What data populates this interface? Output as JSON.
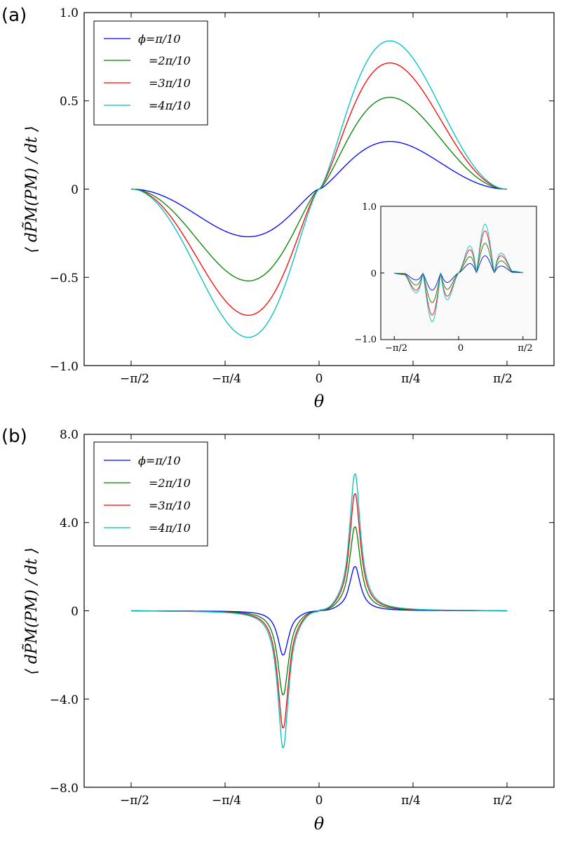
{
  "chart_data": [
    {
      "type": "line",
      "panel_label": "(a)",
      "xlabel": "θ",
      "ylabel": "⟨ dP̃M(PM) / dt ⟩",
      "xlim": [
        -1.9635,
        1.9635
      ],
      "ylim": [
        -1.0,
        1.0
      ],
      "x_ticks": [
        -1.5708,
        -0.7854,
        0,
        0.7854,
        1.5708
      ],
      "x_tick_labels": [
        "−π/2",
        "−π/4",
        "0",
        "π/4",
        "π/2"
      ],
      "y_ticks": [
        1.0,
        0.5,
        0,
        -0.5,
        -1.0
      ],
      "y_tick_labels": [
        "1.0",
        "0.5",
        "0",
        "−0.5",
        "−1.0"
      ],
      "grid": false,
      "legend_position": "upper-left",
      "curve_shape": "antisymmetric smooth hump, extremum at θ = ±0.59, zero at θ = 0 and θ = ±π/2",
      "x": [
        -1.5708,
        -1.2,
        -0.9,
        -0.59,
        -0.3,
        0,
        0.3,
        0.59,
        0.9,
        1.2,
        1.5708
      ],
      "series": [
        {
          "name": "ϕ=π/10",
          "color": "#0000ff",
          "peak": 0.27,
          "values": [
            0,
            -0.05,
            -0.17,
            -0.27,
            -0.17,
            0,
            0.17,
            0.27,
            0.17,
            0.05,
            0
          ]
        },
        {
          "name": "=2π/10",
          "color": "#008000",
          "peak": 0.52,
          "values": [
            0,
            -0.09,
            -0.33,
            -0.52,
            -0.33,
            0,
            0.33,
            0.52,
            0.33,
            0.09,
            0
          ]
        },
        {
          "name": "=3π/10",
          "color": "#ff0000",
          "peak": 0.715,
          "values": [
            0,
            -0.12,
            -0.45,
            -0.715,
            -0.45,
            0,
            0.45,
            0.715,
            0.45,
            0.12,
            0
          ]
        },
        {
          "name": "=4π/10",
          "color": "#00bfbf",
          "peak": 0.84,
          "values": [
            0,
            -0.14,
            -0.53,
            -0.84,
            -0.53,
            0,
            0.53,
            0.84,
            0.53,
            0.14,
            0
          ]
        }
      ],
      "inset": {
        "type": "line",
        "xlim": [
          -1.9,
          1.9
        ],
        "ylim": [
          -1.0,
          1.0
        ],
        "x_ticks": [
          -1.5708,
          0,
          1.5708
        ],
        "x_tick_labels": [
          "−π/2",
          "0",
          "π/2"
        ],
        "y_ticks": [
          1.0,
          0,
          -1.0
        ],
        "y_tick_labels": [
          "1.0",
          "0",
          "−1.0"
        ],
        "curve_shape": "oscillatory antisymmetric profile with two main lobes per sign",
        "series_peaks": [
          0.26,
          0.45,
          0.64,
          0.74
        ]
      }
    },
    {
      "type": "line",
      "panel_label": "(b)",
      "xlabel": "θ",
      "ylabel": "⟨ dP̃M(PM) / dt ⟩",
      "xlim": [
        -1.9635,
        1.9635
      ],
      "ylim": [
        -8.0,
        8.0
      ],
      "x_ticks": [
        -1.5708,
        -0.7854,
        0,
        0.7854,
        1.5708
      ],
      "x_tick_labels": [
        "−π/2",
        "−π/4",
        "0",
        "π/4",
        "π/2"
      ],
      "y_ticks": [
        8.0,
        4.0,
        0,
        -4.0,
        -8.0
      ],
      "y_tick_labels": [
        "8.0",
        "4.0",
        "0",
        "−4.0",
        "−8.0"
      ],
      "grid": false,
      "legend_position": "upper-left",
      "curve_shape": "antisymmetric sharp resonance peaks at θ = ±0.30, small shoulder near θ = ±0.12",
      "x": [
        -1.5708,
        -0.8,
        -0.5,
        -0.4,
        -0.3,
        -0.2,
        -0.1,
        0,
        0.1,
        0.2,
        0.3,
        0.4,
        0.5,
        0.8,
        1.5708
      ],
      "series": [
        {
          "name": "ϕ=π/10",
          "color": "#0000ff",
          "peak": 2.0,
          "values": [
            0,
            -0.03,
            -0.2,
            -0.5,
            -2.0,
            -0.7,
            -0.35,
            0,
            0.35,
            0.7,
            2.0,
            0.5,
            0.2,
            0.03,
            0
          ]
        },
        {
          "name": "=2π/10",
          "color": "#008000",
          "peak": 3.8,
          "values": [
            0,
            -0.04,
            -0.3,
            -0.8,
            -3.8,
            -1.3,
            -0.5,
            0,
            0.5,
            1.3,
            3.8,
            0.8,
            0.3,
            0.04,
            0
          ]
        },
        {
          "name": "=3π/10",
          "color": "#ff0000",
          "peak": 5.3,
          "values": [
            0,
            -0.05,
            -0.35,
            -1.0,
            -5.3,
            -1.6,
            -0.6,
            0,
            0.6,
            1.6,
            5.3,
            1.0,
            0.35,
            0.05,
            0
          ]
        },
        {
          "name": "=4π/10",
          "color": "#00bfbf",
          "peak": 6.2,
          "values": [
            0,
            -0.06,
            -0.4,
            -1.15,
            -6.2,
            -1.8,
            -0.65,
            0,
            0.65,
            1.8,
            6.2,
            1.15,
            0.4,
            0.06,
            0
          ]
        }
      ]
    }
  ]
}
